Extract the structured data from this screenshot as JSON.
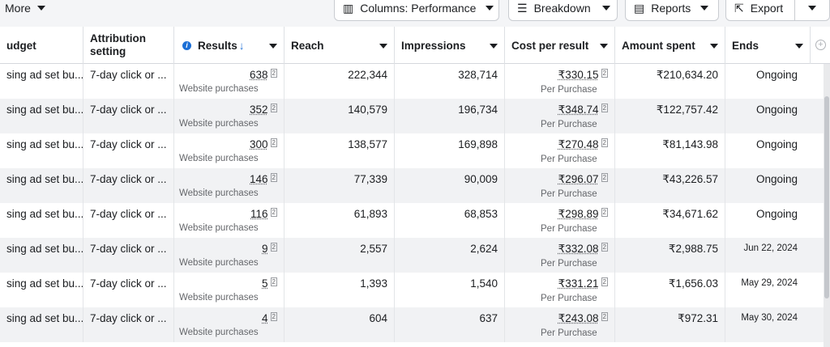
{
  "toolbar": {
    "more_label": "More",
    "columns_label": "Columns: Performance",
    "breakdown_label": "Breakdown",
    "reports_label": "Reports",
    "export_label": "Export"
  },
  "columns": {
    "budget": "udget",
    "attribution": "Attribution setting",
    "results": "Results",
    "reach": "Reach",
    "impressions": "Impressions",
    "cost": "Cost per result",
    "amount": "Amount spent",
    "ends": "Ends"
  },
  "rows": [
    {
      "budget": "sing ad set bu...",
      "attribution": "7-day click or ...",
      "results": "638",
      "results_sub": "Website purchases",
      "reach": "222,344",
      "impressions": "328,714",
      "cost": "₹330.15",
      "cost_sub": "Per Purchase",
      "amount": "₹210,634.20",
      "ends": "Ongoing"
    },
    {
      "budget": "sing ad set bu...",
      "attribution": "7-day click or ...",
      "results": "352",
      "results_sub": "Website purchases",
      "reach": "140,579",
      "impressions": "196,734",
      "cost": "₹348.74",
      "cost_sub": "Per Purchase",
      "amount": "₹122,757.42",
      "ends": "Ongoing"
    },
    {
      "budget": "sing ad set bu...",
      "attribution": "7-day click or ...",
      "results": "300",
      "results_sub": "Website purchases",
      "reach": "138,577",
      "impressions": "169,898",
      "cost": "₹270.48",
      "cost_sub": "Per Purchase",
      "amount": "₹81,143.98",
      "ends": "Ongoing"
    },
    {
      "budget": "sing ad set bu...",
      "attribution": "7-day click or ...",
      "results": "146",
      "results_sub": "Website purchases",
      "reach": "77,339",
      "impressions": "90,009",
      "cost": "₹296.07",
      "cost_sub": "Per Purchase",
      "amount": "₹43,226.57",
      "ends": "Ongoing"
    },
    {
      "budget": "sing ad set bu...",
      "attribution": "7-day click or ...",
      "results": "116",
      "results_sub": "Website purchases",
      "reach": "61,893",
      "impressions": "68,853",
      "cost": "₹298.89",
      "cost_sub": "Per Purchase",
      "amount": "₹34,671.62",
      "ends": "Ongoing"
    },
    {
      "budget": "sing ad set bu...",
      "attribution": "7-day click or ...",
      "results": "9",
      "results_sub": "Website purchases",
      "reach": "2,557",
      "impressions": "2,624",
      "cost": "₹332.08",
      "cost_sub": "Per Purchase",
      "amount": "₹2,988.75",
      "ends": "Jun 22, 2024"
    },
    {
      "budget": "sing ad set bu...",
      "attribution": "7-day click or ...",
      "results": "5",
      "results_sub": "Website purchases",
      "reach": "1,393",
      "impressions": "1,540",
      "cost": "₹331.21",
      "cost_sub": "Per Purchase",
      "amount": "₹1,656.03",
      "ends": "May 29, 2024"
    },
    {
      "budget": "sing ad set bu...",
      "attribution": "7-day click or ...",
      "results": "4",
      "results_sub": "Website purchases",
      "reach": "604",
      "impressions": "637",
      "cost": "₹243.08",
      "cost_sub": "Per Purchase",
      "amount": "₹972.31",
      "ends": "May 30, 2024"
    }
  ],
  "note_superscript": "2"
}
